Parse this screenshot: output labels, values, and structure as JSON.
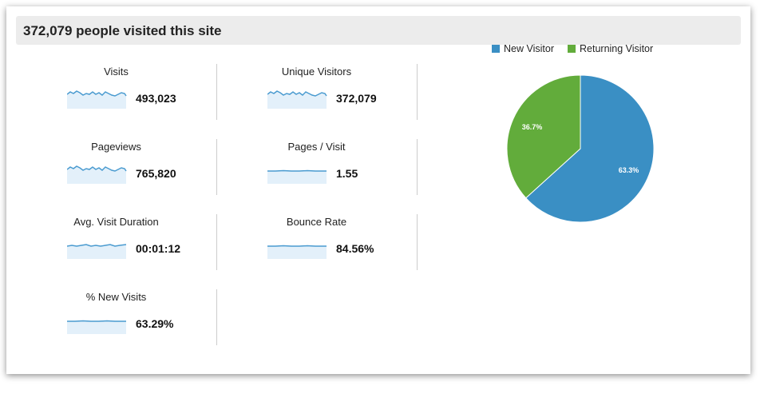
{
  "header": {
    "title": "372,079 people visited this site"
  },
  "metrics": [
    {
      "label": "Visits",
      "value": "493,023",
      "trend": "wavy"
    },
    {
      "label": "Unique Visitors",
      "value": "372,079",
      "trend": "wavy"
    },
    {
      "label": "Pageviews",
      "value": "765,820",
      "trend": "wavy"
    },
    {
      "label": "Pages / Visit",
      "value": "1.55",
      "trend": "flat"
    },
    {
      "label": "Avg. Visit Duration",
      "value": "00:01:12",
      "trend": "slight"
    },
    {
      "label": "Bounce Rate",
      "value": "84.56%",
      "trend": "flat"
    },
    {
      "label": "% New Visits",
      "value": "63.29%",
      "trend": "flat"
    }
  ],
  "colors": {
    "new": "#3a8fc4",
    "returning": "#62ac3b",
    "spark_line": "#4a9bd0",
    "spark_fill": "#e3f0fa"
  },
  "chart_data": {
    "type": "pie",
    "legend": [
      "New Visitor",
      "Returning Visitor"
    ],
    "legend_position": "top",
    "values": [
      63.3,
      36.7
    ],
    "labels": [
      "63.3%",
      "36.7%"
    ]
  }
}
